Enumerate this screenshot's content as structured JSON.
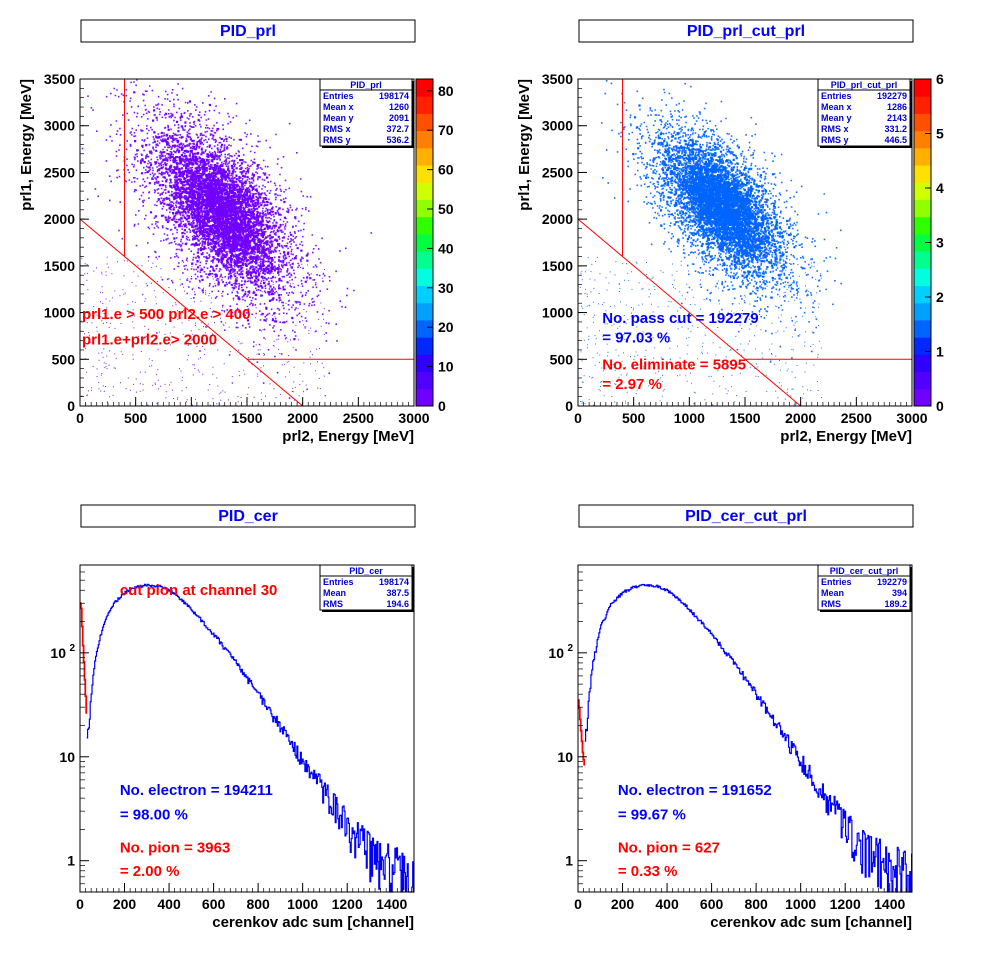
{
  "chart_data": [
    {
      "type": "heatmap",
      "title": "PID_prl",
      "xlabel": "prl2, Energy [MeV]",
      "ylabel": "prl1, Energy [MeV]",
      "xlim": [
        0,
        3000
      ],
      "ylim": [
        0,
        3500
      ],
      "x_ticks": [
        0,
        500,
        1000,
        1500,
        2000,
        2500,
        3000
      ],
      "y_ticks": [
        0,
        500,
        1000,
        1500,
        2000,
        2500,
        3000,
        3500
      ],
      "z_max": 83,
      "z_ticks": [
        0,
        10,
        20,
        30,
        40,
        50,
        60,
        70,
        80
      ],
      "stats": {
        "name": "PID_prl",
        "rows": [
          [
            "Entries",
            "198174"
          ],
          [
            "Mean x",
            "1260"
          ],
          [
            "Mean y",
            "2091"
          ],
          [
            "RMS x",
            "372.7"
          ],
          [
            "RMS y",
            "536.2"
          ]
        ]
      },
      "density": {
        "mean_x": 1260,
        "mean_y": 2091,
        "rms_x": 372.7,
        "rms_y": 536.2,
        "corr": -0.6
      },
      "fill_color": "#7000ff",
      "cut_lines": [
        [
          [
            400,
            3500
          ],
          [
            400,
            1600
          ]
        ],
        [
          [
            0,
            2000
          ],
          [
            2000,
            0
          ]
        ],
        [
          [
            1500,
            500
          ],
          [
            3000,
            500
          ]
        ]
      ],
      "annotations": [
        {
          "text": "prl1.e > 500 prl2.e > 400",
          "color": "#ff0000",
          "x": 0,
          "y": 930
        },
        {
          "text": "prl1.e+prl2.e> 2000",
          "color": "#ff0000",
          "x": 0,
          "y": 660
        }
      ]
    },
    {
      "type": "heatmap",
      "title": "PID_prl_cut_prl",
      "xlabel": "prl2, Energy [MeV]",
      "ylabel": "prl1, Energy [MeV]",
      "xlim": [
        0,
        3000
      ],
      "ylim": [
        0,
        3500
      ],
      "x_ticks": [
        0,
        500,
        1000,
        1500,
        2000,
        2500,
        3000
      ],
      "y_ticks": [
        0,
        500,
        1000,
        1500,
        2000,
        2500,
        3000,
        3500
      ],
      "z_max": 6,
      "z_ticks": [
        0,
        1,
        2,
        3,
        4,
        5,
        6
      ],
      "stats": {
        "name": "PID_prl_cut_prl",
        "rows": [
          [
            "Entries",
            "192279"
          ],
          [
            "Mean x",
            "1286"
          ],
          [
            "Mean y",
            "2143"
          ],
          [
            "RMS x",
            "331.2"
          ],
          [
            "RMS y",
            "446.5"
          ]
        ]
      },
      "density": {
        "mean_x": 1286,
        "mean_y": 2143,
        "rms_x": 331.2,
        "rms_y": 446.5,
        "corr": -0.6
      },
      "fill_color": "#0064ff",
      "cut_lines": [
        [
          [
            400,
            3500
          ],
          [
            400,
            1600
          ]
        ],
        [
          [
            0,
            2000
          ],
          [
            2000,
            0
          ]
        ],
        [
          [
            1500,
            500
          ],
          [
            3000,
            500
          ]
        ]
      ],
      "annotations": [
        {
          "text": "No. pass cut = 192279",
          "color": "#0000ff",
          "x": 200,
          "y": 890
        },
        {
          "text": " = 97.03 %",
          "color": "#0000ff",
          "x": 200,
          "y": 680
        },
        {
          "text": "No. eliminate = 5895",
          "color": "#ff0000",
          "x": 200,
          "y": 390
        },
        {
          "text": " = 2.97 %",
          "color": "#ff0000",
          "x": 200,
          "y": 180
        }
      ]
    },
    {
      "type": "line",
      "title": "PID_cer",
      "xlabel": "cerenkov adc sum [channel]",
      "ylabel": "",
      "xlim": [
        0,
        1500
      ],
      "ylim": [
        0.5,
        700
      ],
      "y_scale": "log",
      "x_ticks": [
        0,
        200,
        400,
        600,
        800,
        1000,
        1200,
        1400
      ],
      "y_ticks": [
        {
          "v": 1,
          "label": "1"
        },
        {
          "v": 10,
          "label": "10"
        },
        {
          "v": 100,
          "label": "10",
          "sup": "2"
        }
      ],
      "stats": {
        "name": "PID_cer",
        "rows": [
          [
            "Entries",
            "198174"
          ],
          [
            "Mean",
            "387.5"
          ],
          [
            "RMS",
            "194.6"
          ]
        ]
      },
      "series": [
        {
          "color": "#0000ff",
          "x": [
            30,
            40,
            60,
            100,
            150,
            200,
            250,
            300,
            350,
            400,
            450,
            500,
            600,
            700,
            800,
            900,
            1000,
            1100,
            1200,
            1300,
            1400,
            1500
          ],
          "y": [
            15,
            22,
            70,
            180,
            300,
            380,
            430,
            450,
            440,
            400,
            330,
            260,
            150,
            80,
            40,
            19,
            9,
            4.5,
            2.2,
            1.2,
            0.9,
            0.7
          ]
        },
        {
          "color": "#ff0000",
          "x": [
            0,
            5,
            10,
            15,
            20,
            25,
            30
          ],
          "y": [
            300,
            260,
            140,
            90,
            55,
            35,
            22
          ]
        }
      ],
      "annotations": [
        {
          "text": "cut pion at channel 30",
          "color": "#ff0000",
          "x": 170,
          "y": 360
        },
        {
          "text": "No. electron = 194211",
          "color": "#0000ff",
          "x": 170,
          "y": 4.3
        },
        {
          "text": " = 98.00 %",
          "color": "#0000ff",
          "x": 170,
          "y": 2.5
        },
        {
          "text": "No. pion = 3963",
          "color": "#ff0000",
          "x": 170,
          "y": 1.2
        },
        {
          "text": " = 2.00 %",
          "color": "#ff0000",
          "x": 170,
          "y": 0.71
        }
      ]
    },
    {
      "type": "line",
      "title": "PID_cer_cut_prl",
      "xlabel": "cerenkov adc sum [channel]",
      "ylabel": "",
      "xlim": [
        0,
        1500
      ],
      "ylim": [
        0.5,
        700
      ],
      "y_scale": "log",
      "x_ticks": [
        0,
        200,
        400,
        600,
        800,
        1000,
        1200,
        1400
      ],
      "y_ticks": [
        {
          "v": 1,
          "label": "1"
        },
        {
          "v": 10,
          "label": "10"
        },
        {
          "v": 100,
          "label": "10",
          "sup": "2"
        }
      ],
      "stats": {
        "name": "PID_cer_cut_prl",
        "rows": [
          [
            "Entries",
            "192279"
          ],
          [
            "Mean",
            "394"
          ],
          [
            "RMS",
            "189.2"
          ]
        ]
      },
      "series": [
        {
          "color": "#0000ff",
          "x": [
            30,
            40,
            60,
            100,
            150,
            200,
            250,
            300,
            350,
            400,
            450,
            500,
            600,
            700,
            800,
            900,
            1000,
            1100,
            1200,
            1300,
            1400,
            1500
          ],
          "y": [
            15,
            22,
            70,
            180,
            300,
            380,
            430,
            450,
            440,
            400,
            330,
            260,
            150,
            80,
            40,
            19,
            9,
            4.5,
            2.2,
            1.2,
            0.9,
            0.7
          ]
        },
        {
          "color": "#ff0000",
          "x": [
            0,
            5,
            10,
            15,
            20,
            25,
            30
          ],
          "y": [
            35,
            28,
            20,
            15,
            11,
            9,
            8
          ]
        }
      ],
      "annotations": [
        {
          "text": "No. electron = 191652",
          "color": "#0000ff",
          "x": 170,
          "y": 4.3
        },
        {
          "text": " = 99.67 %",
          "color": "#0000ff",
          "x": 170,
          "y": 2.5
        },
        {
          "text": "No. pion = 627",
          "color": "#ff0000",
          "x": 170,
          "y": 1.2
        },
        {
          "text": " = 0.33 %",
          "color": "#ff0000",
          "x": 170,
          "y": 0.71
        }
      ]
    }
  ]
}
